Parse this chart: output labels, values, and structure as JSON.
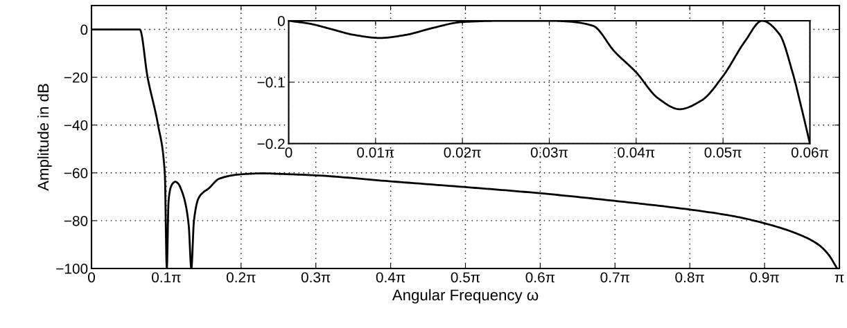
{
  "chart_data": [
    {
      "type": "line",
      "xlabel": "Angular Frequency ω",
      "ylabel": "Amplitude in dB",
      "grid": true,
      "line_style": "solid",
      "marker": "none",
      "series": [
        {
          "color": "#000000",
          "x": [
            0,
            0.0628,
            0.1257,
            0.1885,
            0.2029,
            0.2356,
            0.2796,
            0.3079,
            0.3164,
            0.3236,
            0.333,
            0.3424,
            0.3519,
            0.3644,
            0.377,
            0.3927,
            0.4084,
            0.4194,
            0.4304,
            0.4492,
            0.4712,
            0.4901,
            0.5372,
            0.6283,
            0.7226,
            0.7823,
            0.9362,
            1.2504,
            1.5645,
            1.8818,
            2.196,
            2.5101,
            2.7018,
            2.8274,
            2.9625,
            3.0505,
            3.0945,
            3.1322
          ],
          "values": [
            0,
            0,
            0,
            0,
            0,
            -20,
            -40,
            -60,
            -100,
            -72,
            -66,
            -64.3,
            -63.7,
            -64.5,
            -67,
            -72,
            -82,
            -100,
            -80,
            -70.7,
            -68,
            -66.7,
            -62.4,
            -60.6,
            -60.2,
            -60.4,
            -61,
            -63.5,
            -65.9,
            -68.5,
            -71.7,
            -75.3,
            -78.2,
            -81.1,
            -85.4,
            -89.8,
            -94,
            -100
          ]
        }
      ],
      "xlim": [
        0,
        3.14159
      ],
      "ylim": [
        -100,
        10
      ],
      "xticks": [
        0,
        {
          "value": 0.31416,
          "label": "0.1π"
        },
        {
          "value": 0.62832,
          "label": "0.2π"
        },
        {
          "value": 0.94248,
          "label": "0.3π"
        },
        {
          "value": 1.25664,
          "label": "0.4π"
        },
        {
          "value": 1.5708,
          "label": "0.5π"
        },
        {
          "value": 1.88496,
          "label": "0.6π"
        },
        {
          "value": 2.19911,
          "label": "0.7π"
        },
        {
          "value": 2.51327,
          "label": "0.8π"
        },
        {
          "value": 2.82743,
          "label": "0.9π"
        },
        {
          "value": 3.14159,
          "label": "π"
        }
      ],
      "yticks": [
        {
          "value": -100,
          "label": "−100"
        },
        {
          "value": -80,
          "label": "−80"
        },
        {
          "value": -60,
          "label": "−60"
        },
        {
          "value": -40,
          "label": "−40"
        },
        {
          "value": -20,
          "label": "−20"
        },
        0
      ]
    },
    {
      "type": "line",
      "grid": true,
      "line_style": "solid",
      "marker": "none",
      "series": [
        {
          "color": "#000000",
          "x": [
            0,
            0.00785,
            0.01571,
            0.02356,
            0.03299,
            0.04241,
            0.05184,
            0.06283,
            0.07854,
            0.09425,
            0.10053,
            0.10996,
            0.11781,
            0.12566,
            0.13352,
            0.14137,
            0.14923,
            0.15708,
            0.16493,
            0.17122,
            0.1775,
            0.18221,
            0.18535,
            0.1885
          ],
          "values": [
            0,
            -0.005,
            -0.014,
            -0.023,
            -0.028,
            -0.023,
            -0.012,
            -0.002,
            0,
            0,
            -0.001,
            -0.008,
            -0.05,
            -0.084,
            -0.126,
            -0.144,
            -0.13,
            -0.09,
            -0.034,
            0,
            -0.022,
            -0.084,
            -0.14,
            -0.2
          ]
        }
      ],
      "xlim": [
        0,
        0.1885
      ],
      "ylim": [
        -0.2,
        0
      ],
      "xticks": [
        0,
        {
          "value": 0.031416,
          "label": "0.01π"
        },
        {
          "value": 0.062832,
          "label": "0.02π"
        },
        {
          "value": 0.094248,
          "label": "0.03π"
        },
        {
          "value": 0.125664,
          "label": "0.04π"
        },
        {
          "value": 0.15708,
          "label": "0.05π"
        },
        {
          "value": 0.188496,
          "label": "0.06π"
        }
      ],
      "yticks": [
        {
          "value": -0.2,
          "label": "−0.2"
        },
        {
          "value": -0.1,
          "label": "−0.1"
        },
        0
      ]
    }
  ]
}
